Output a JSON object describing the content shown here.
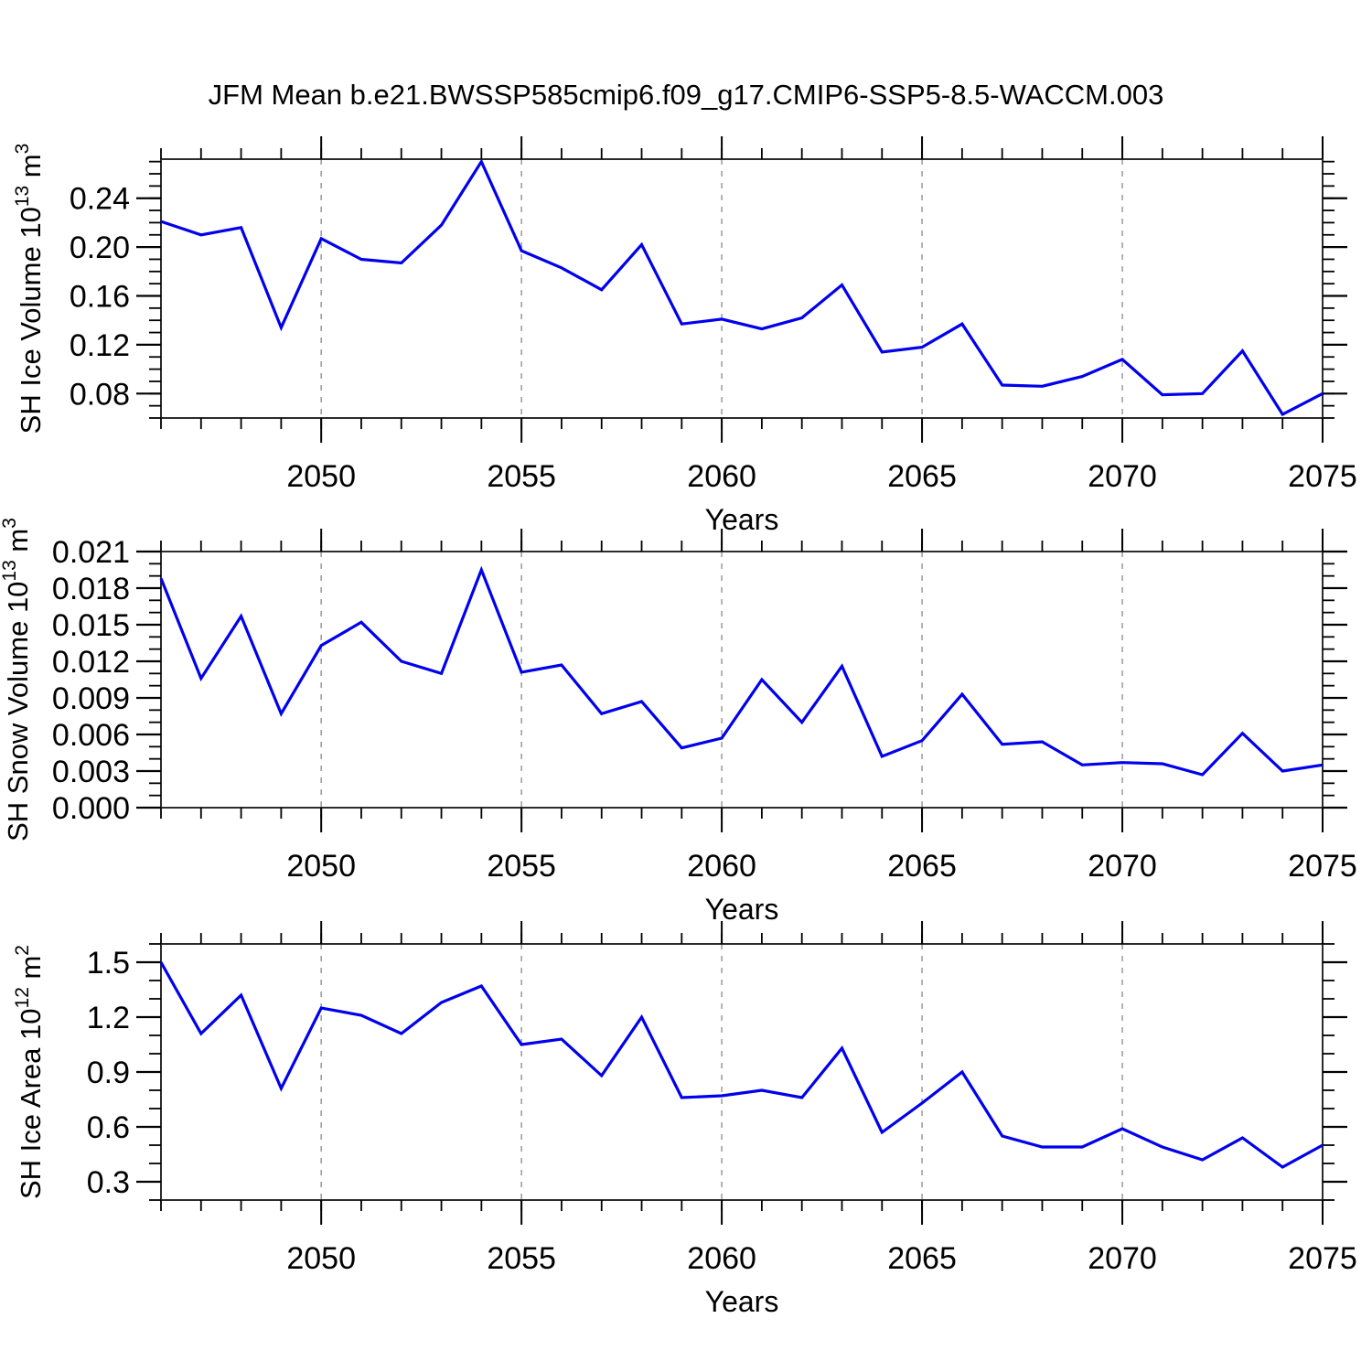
{
  "title": "JFM Mean b.e21.BWSSP585cmip6.f09_g17.CMIP6-SSP5-8.5-WACCM.003",
  "colors": {
    "line": "#0000EE",
    "frame": "#2b2b2b",
    "tick": "#000000",
    "grid": "#999999",
    "background": "#ffffff",
    "text": "#000000"
  },
  "chart_data": [
    {
      "type": "line",
      "title": "",
      "xlabel": "Years",
      "ylabel": "SH Ice Volume 10¹³ m³",
      "ylabel_parts": [
        {
          "t": "SH Ice Volume 10"
        },
        {
          "t": "13",
          "sup": true
        },
        {
          "t": " m"
        },
        {
          "t": "3",
          "sup": true
        }
      ],
      "x": [
        2046,
        2047,
        2048,
        2049,
        2050,
        2051,
        2052,
        2053,
        2054,
        2055,
        2056,
        2057,
        2058,
        2059,
        2060,
        2061,
        2062,
        2063,
        2064,
        2065,
        2066,
        2067,
        2068,
        2069,
        2070,
        2071,
        2072,
        2073,
        2074,
        2075
      ],
      "values": [
        0.221,
        0.21,
        0.216,
        0.134,
        0.207,
        0.19,
        0.187,
        0.218,
        0.27,
        0.197,
        0.183,
        0.165,
        0.202,
        0.137,
        0.141,
        0.133,
        0.142,
        0.169,
        0.114,
        0.118,
        0.137,
        0.087,
        0.086,
        0.094,
        0.108,
        0.079,
        0.08,
        0.115,
        0.063,
        0.08
      ],
      "xlim": [
        2046,
        2075
      ],
      "ylim": [
        0.06,
        0.272
      ],
      "x_major_ticks": [
        2050,
        2055,
        2060,
        2065,
        2070,
        2075
      ],
      "x_major_labels": [
        "2050",
        "2055",
        "2060",
        "2065",
        "2070",
        "2075"
      ],
      "x_minor_step": 1,
      "grid_years": [
        2050,
        2055,
        2060,
        2065,
        2070
      ],
      "y_major_values": [
        0.08,
        0.12,
        0.16,
        0.2,
        0.24
      ],
      "y_major_labels": [
        "0.08",
        "0.12",
        "0.16",
        "0.20",
        "0.24"
      ],
      "y_minor_step": 0.01,
      "grid": "vertical-dashed",
      "legend": "none"
    },
    {
      "type": "line",
      "title": "",
      "xlabel": "Years",
      "ylabel": "SH Snow Volume 10¹³ m³",
      "ylabel_parts": [
        {
          "t": "SH Snow Volume 10"
        },
        {
          "t": "13",
          "sup": true
        },
        {
          "t": " m"
        },
        {
          "t": "3",
          "sup": true
        }
      ],
      "x": [
        2046,
        2047,
        2048,
        2049,
        2050,
        2051,
        2052,
        2053,
        2054,
        2055,
        2056,
        2057,
        2058,
        2059,
        2060,
        2061,
        2062,
        2063,
        2064,
        2065,
        2066,
        2067,
        2068,
        2069,
        2070,
        2071,
        2072,
        2073,
        2074,
        2075
      ],
      "values": [
        0.0188,
        0.0106,
        0.0157,
        0.0077,
        0.0133,
        0.0152,
        0.012,
        0.011,
        0.0195,
        0.0111,
        0.0117,
        0.0077,
        0.0087,
        0.0049,
        0.0057,
        0.0105,
        0.007,
        0.0116,
        0.0042,
        0.0055,
        0.0093,
        0.0052,
        0.0054,
        0.0035,
        0.0037,
        0.0036,
        0.0027,
        0.0061,
        0.003,
        0.0035
      ],
      "xlim": [
        2046,
        2075
      ],
      "ylim": [
        0.0,
        0.021
      ],
      "x_major_ticks": [
        2050,
        2055,
        2060,
        2065,
        2070,
        2075
      ],
      "x_major_labels": [
        "2050",
        "2055",
        "2060",
        "2065",
        "2070",
        "2075"
      ],
      "x_minor_step": 1,
      "grid_years": [
        2050,
        2055,
        2060,
        2065,
        2070
      ],
      "y_major_values": [
        0.0,
        0.003,
        0.006,
        0.009,
        0.012,
        0.015,
        0.018,
        0.021
      ],
      "y_major_labels": [
        "0.000",
        "0.003",
        "0.006",
        "0.009",
        "0.012",
        "0.015",
        "0.018",
        "0.021"
      ],
      "y_minor_step": 0.001,
      "grid": "vertical-dashed",
      "legend": "none"
    },
    {
      "type": "line",
      "title": "",
      "xlabel": "Years",
      "ylabel": "SH Ice Area 10¹² m²",
      "ylabel_parts": [
        {
          "t": "SH Ice Area 10"
        },
        {
          "t": "12",
          "sup": true
        },
        {
          "t": " m"
        },
        {
          "t": "2",
          "sup": true
        }
      ],
      "x": [
        2046,
        2047,
        2048,
        2049,
        2050,
        2051,
        2052,
        2053,
        2054,
        2055,
        2056,
        2057,
        2058,
        2059,
        2060,
        2061,
        2062,
        2063,
        2064,
        2065,
        2066,
        2067,
        2068,
        2069,
        2070,
        2071,
        2072,
        2073,
        2074,
        2075
      ],
      "values": [
        1.5,
        1.11,
        1.32,
        0.81,
        1.25,
        1.21,
        1.11,
        1.28,
        1.37,
        1.05,
        1.08,
        0.88,
        1.2,
        0.76,
        0.77,
        0.8,
        0.76,
        1.03,
        0.57,
        0.73,
        0.9,
        0.55,
        0.49,
        0.49,
        0.59,
        0.49,
        0.42,
        0.54,
        0.38,
        0.5
      ],
      "xlim": [
        2046,
        2075
      ],
      "ylim": [
        0.2,
        1.6
      ],
      "x_major_ticks": [
        2050,
        2055,
        2060,
        2065,
        2070,
        2075
      ],
      "x_major_labels": [
        "2050",
        "2055",
        "2060",
        "2065",
        "2070",
        "2075"
      ],
      "x_minor_step": 1,
      "grid_years": [
        2050,
        2055,
        2060,
        2065,
        2070
      ],
      "y_major_values": [
        0.3,
        0.6,
        0.9,
        1.2,
        1.5
      ],
      "y_major_labels": [
        "0.3",
        "0.6",
        "0.9",
        "1.2",
        "1.5"
      ],
      "y_minor_step": 0.1,
      "grid": "vertical-dashed",
      "legend": "none"
    }
  ]
}
